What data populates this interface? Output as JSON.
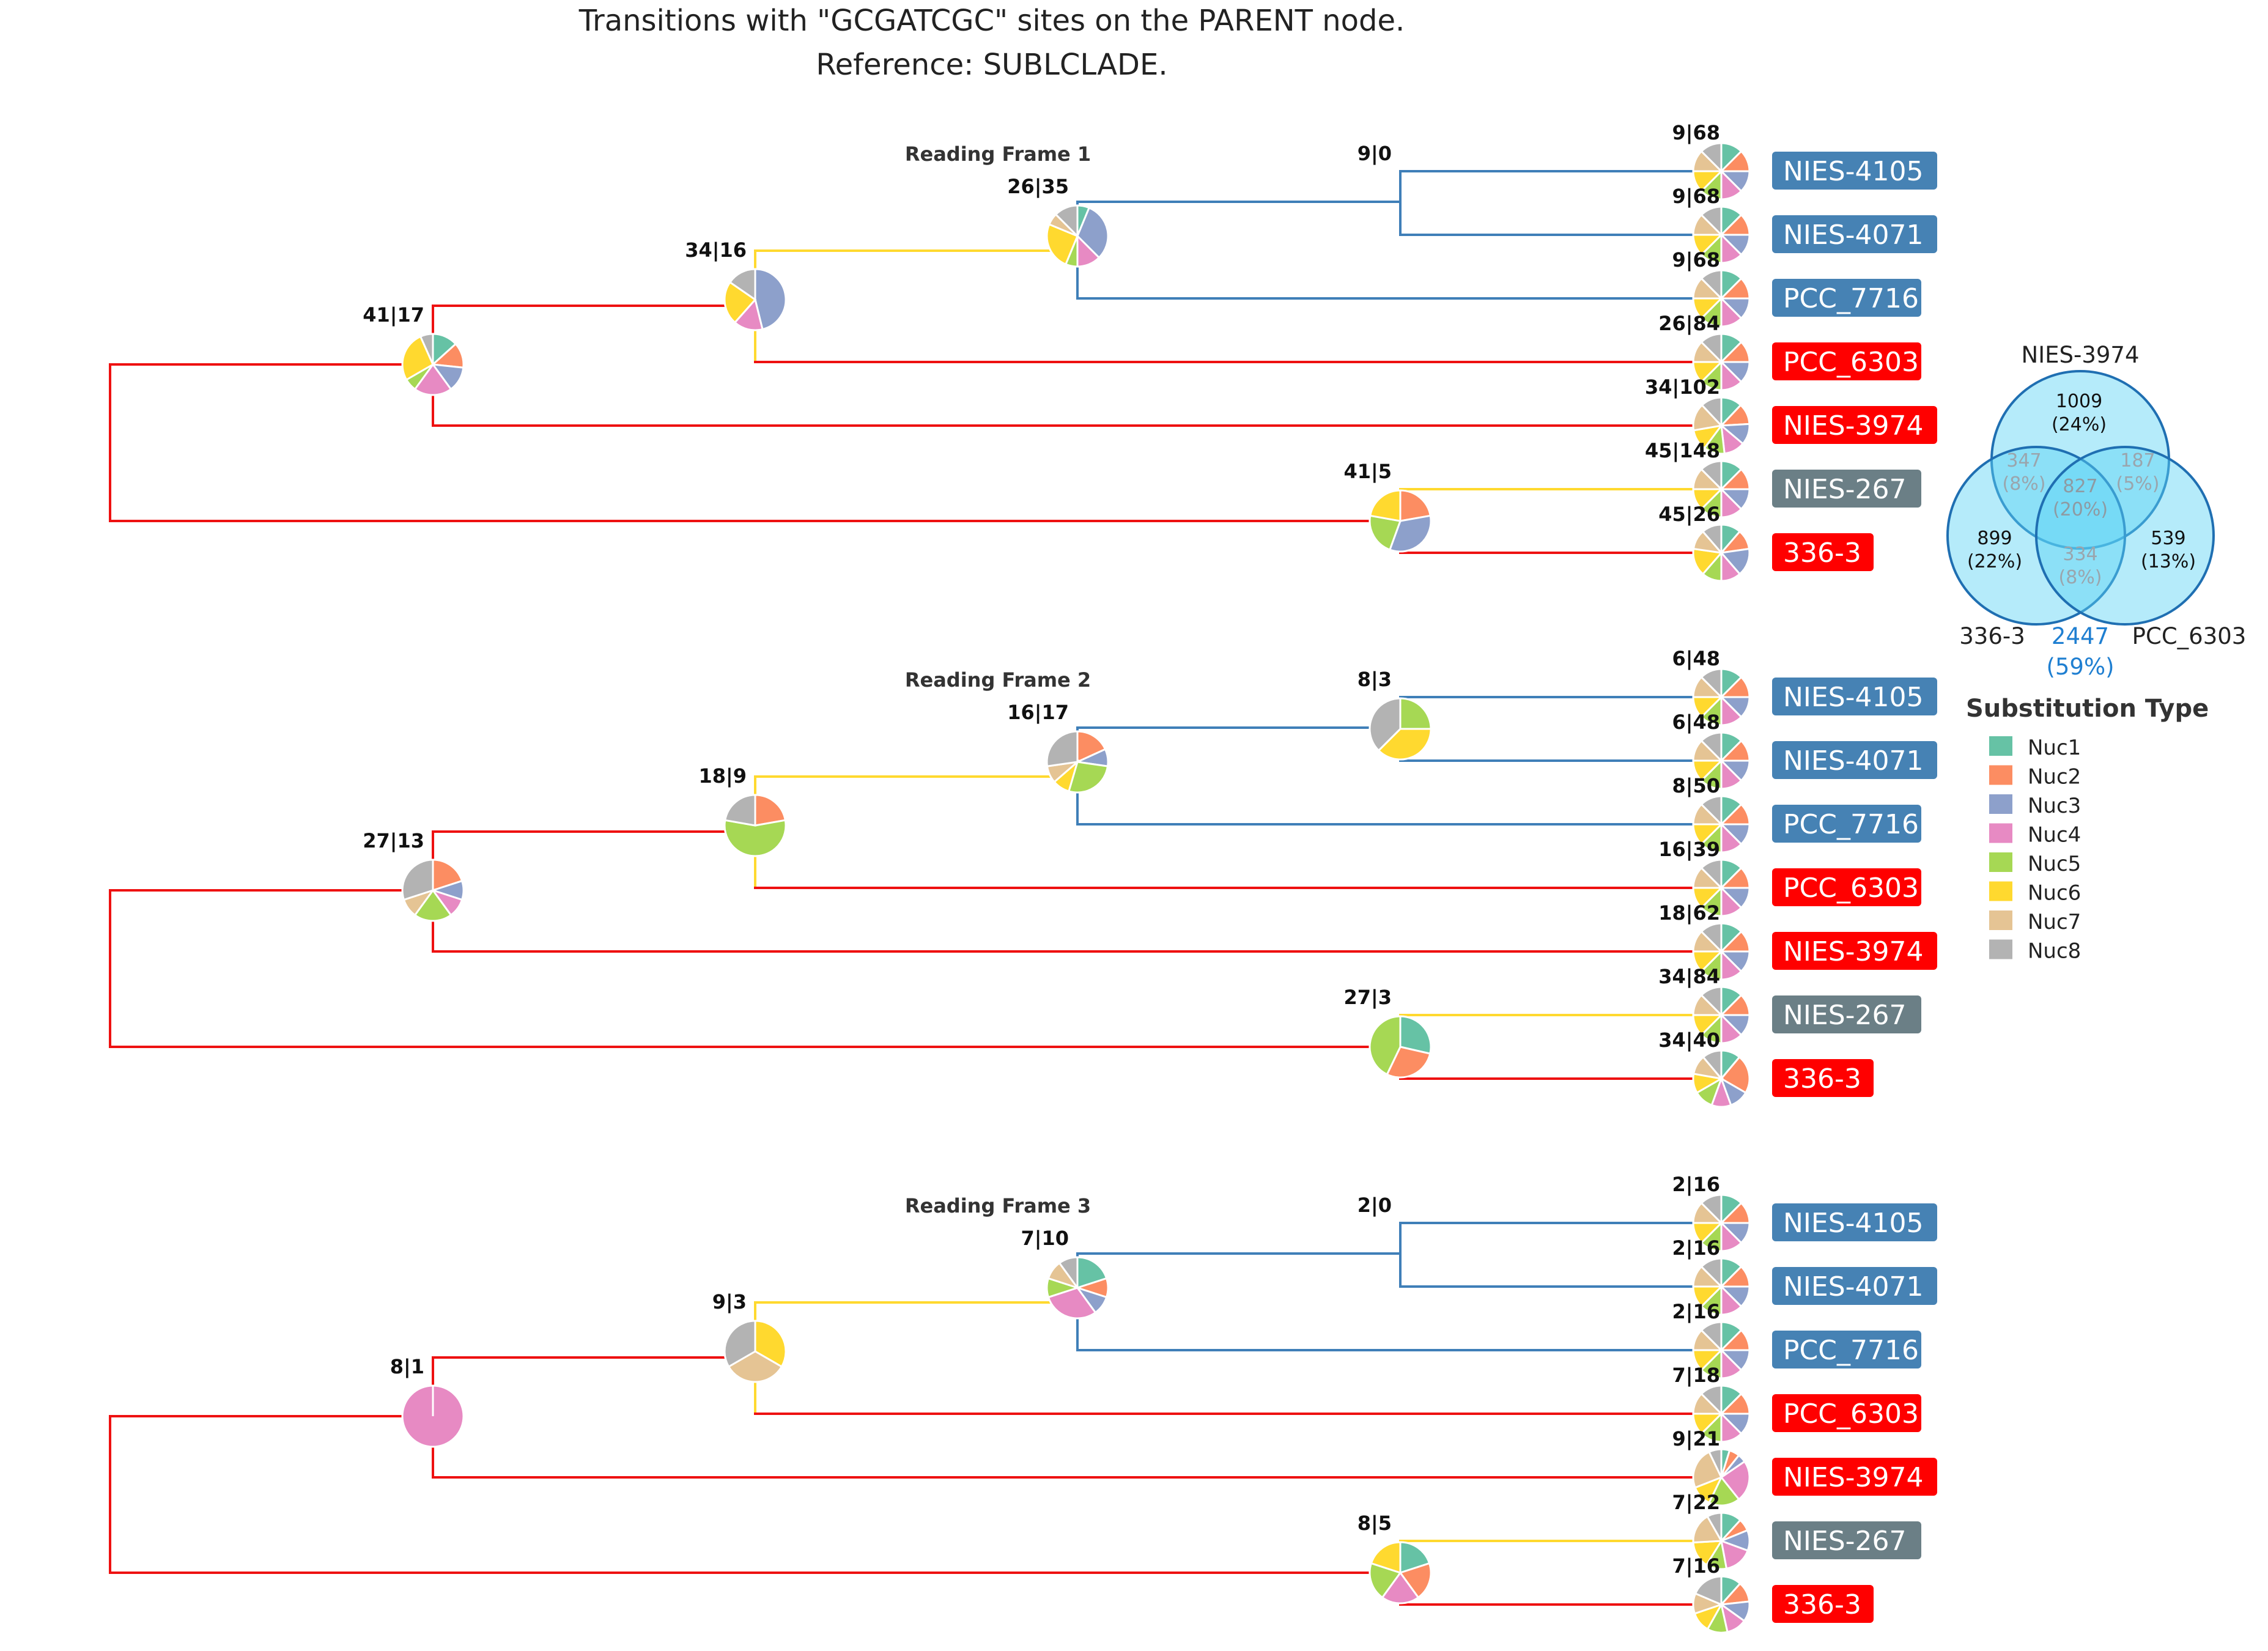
{
  "title": {
    "line1": "Transitions with \"GCGATCGC\" sites on the PARENT node.",
    "line2": "Reference: SUBLCLADE."
  },
  "colors": {
    "Nuc1": "#66c2a5",
    "Nuc2": "#fc8d62",
    "Nuc3": "#8da0cb",
    "Nuc4": "#e78ac3",
    "Nuc5": "#a6d854",
    "Nuc6": "#ffd92f",
    "Nuc7": "#e5c494",
    "Nuc8": "#b3b3b3",
    "branch_red": "#ee1111",
    "branch_blue": "#3f7fb8",
    "branch_yellow": "#ffd92f",
    "taxon_blue": "#4682b4",
    "taxon_red": "#ff0000",
    "taxon_gray": "#6b7f86"
  },
  "taxa": [
    {
      "label": "NIES-4105",
      "color": "blue"
    },
    {
      "label": "NIES-4071",
      "color": "blue"
    },
    {
      "label": "PCC_7716",
      "color": "blue"
    },
    {
      "label": "PCC_6303",
      "color": "red"
    },
    {
      "label": "NIES-3974",
      "color": "red"
    },
    {
      "label": "NIES-267",
      "color": "gray"
    },
    {
      "label": "336-3",
      "color": "red"
    }
  ],
  "frames": [
    {
      "title": "Reading Frame 1",
      "nodes": {
        "root": {
          "label": "41|17",
          "pie": [
            2,
            2,
            2,
            3,
            1,
            4,
            0,
            1
          ]
        },
        "n1": {
          "label": "34|16",
          "pie": [
            0,
            0,
            6,
            2,
            0,
            3,
            0,
            2
          ]
        },
        "n2": {
          "label": "26|35",
          "pie": [
            1,
            0,
            5,
            2,
            1,
            4,
            1,
            2
          ]
        },
        "n3": {
          "label": "9|0",
          "pie": null
        },
        "n4": {
          "label": "41|5",
          "pie": [
            0,
            2,
            3,
            0,
            2,
            2,
            0,
            0
          ]
        }
      },
      "leaves": [
        {
          "label": "9|68",
          "pie": [
            1,
            1,
            1,
            1,
            1,
            1,
            1,
            1
          ]
        },
        {
          "label": "9|68",
          "pie": [
            1,
            1,
            1,
            1,
            1,
            1,
            1,
            1
          ]
        },
        {
          "label": "9|68",
          "pie": [
            1,
            1,
            1,
            1,
            1,
            1,
            1,
            1
          ]
        },
        {
          "label": "26|84",
          "pie": [
            1,
            1,
            1,
            1,
            1,
            1,
            1,
            1
          ]
        },
        {
          "label": "34|102",
          "pie": [
            1,
            1,
            1,
            1,
            1,
            1,
            1.3,
            1
          ]
        },
        {
          "label": "45|148",
          "pie": [
            1,
            1,
            1,
            1,
            1,
            1,
            1,
            1
          ]
        },
        {
          "label": "45|26",
          "pie": [
            1,
            1,
            1.4,
            1,
            1,
            1.4,
            1,
            1
          ]
        }
      ]
    },
    {
      "title": "Reading Frame 2",
      "nodes": {
        "root": {
          "label": "27|13",
          "pie": [
            0,
            2,
            1,
            1,
            2,
            0,
            1,
            3
          ]
        },
        "n1": {
          "label": "18|9",
          "pie": [
            0,
            2,
            0,
            0,
            5,
            0,
            0,
            2
          ]
        },
        "n2": {
          "label": "16|17",
          "pie": [
            0,
            2,
            1,
            0,
            3,
            1,
            1,
            3
          ]
        },
        "n3": {
          "label": "8|3",
          "pie": [
            0,
            0,
            0,
            0,
            2,
            3,
            0,
            3
          ]
        },
        "n4": {
          "label": "27|3",
          "pie": [
            2,
            2,
            0,
            0,
            3,
            0,
            0,
            0
          ]
        }
      },
      "leaves": [
        {
          "label": "6|48",
          "pie": [
            1,
            1,
            1,
            1,
            1,
            1,
            1,
            1
          ]
        },
        {
          "label": "6|48",
          "pie": [
            1,
            1,
            1,
            1,
            1,
            1,
            1,
            1
          ]
        },
        {
          "label": "8|50",
          "pie": [
            1,
            1,
            1,
            1,
            1,
            1,
            1,
            1
          ]
        },
        {
          "label": "16|39",
          "pie": [
            1,
            1,
            1,
            1,
            1,
            1,
            1,
            1
          ]
        },
        {
          "label": "18|62",
          "pie": [
            1,
            1,
            1,
            1,
            1,
            1,
            1,
            1
          ]
        },
        {
          "label": "34|84",
          "pie": [
            1,
            1,
            1,
            1,
            1,
            1,
            1,
            1
          ]
        },
        {
          "label": "34|40",
          "pie": [
            1,
            2,
            1,
            1,
            1,
            1,
            1,
            1
          ]
        }
      ]
    },
    {
      "title": "Reading Frame 3",
      "nodes": {
        "root": {
          "label": "8|1",
          "pie": [
            0,
            0,
            0,
            1,
            0,
            0,
            0,
            0
          ]
        },
        "n1": {
          "label": "9|3",
          "pie": [
            0,
            0,
            0,
            0,
            0,
            1,
            1,
            1
          ]
        },
        "n2": {
          "label": "7|10",
          "pie": [
            2,
            1,
            1,
            3,
            1,
            0,
            1,
            1
          ]
        },
        "n3": {
          "label": "2|0",
          "pie": null
        },
        "n4": {
          "label": "8|5",
          "pie": [
            1,
            1,
            0,
            1,
            1,
            1,
            0,
            0
          ]
        }
      },
      "leaves": [
        {
          "label": "2|16",
          "pie": [
            1,
            1,
            1,
            1,
            1,
            1,
            1,
            1
          ]
        },
        {
          "label": "2|16",
          "pie": [
            1,
            1,
            1,
            1,
            1,
            1,
            1,
            1
          ]
        },
        {
          "label": "2|16",
          "pie": [
            1,
            1,
            1,
            1,
            1,
            1,
            1,
            1
          ]
        },
        {
          "label": "7|18",
          "pie": [
            1,
            1,
            1,
            1,
            1,
            1,
            1,
            1
          ]
        },
        {
          "label": "9|21",
          "pie": [
            0.4,
            0.5,
            0.4,
            2,
            1.5,
            1,
            2,
            0.6
          ]
        },
        {
          "label": "7|22",
          "pie": [
            1,
            0.6,
            1,
            1.4,
            1,
            1.3,
            1.5,
            0.7
          ]
        },
        {
          "label": "7|16",
          "pie": [
            1,
            1,
            1,
            1,
            1,
            1,
            1,
            1.6
          ]
        }
      ]
    }
  ],
  "venn": {
    "sets": [
      "NIES-3974",
      "336-3",
      "PCC_6303"
    ],
    "only_top": {
      "count": "1009",
      "pct": "(24%)"
    },
    "only_left": {
      "count": "899",
      "pct": "(22%)"
    },
    "only_right": {
      "count": "539",
      "pct": "(13%)"
    },
    "top_left": {
      "count": "347",
      "pct": "(8%)"
    },
    "top_right": {
      "count": "187",
      "pct": "(5%)"
    },
    "left_right": {
      "count": "334",
      "pct": "(8%)"
    },
    "center": {
      "count": "827",
      "pct": "(20%)"
    },
    "total": {
      "count": "2447",
      "pct": "(59%)"
    }
  },
  "legend": {
    "title": "Substitution Type",
    "items": [
      "Nuc1",
      "Nuc2",
      "Nuc3",
      "Nuc4",
      "Nuc5",
      "Nuc6",
      "Nuc7",
      "Nuc8"
    ]
  }
}
